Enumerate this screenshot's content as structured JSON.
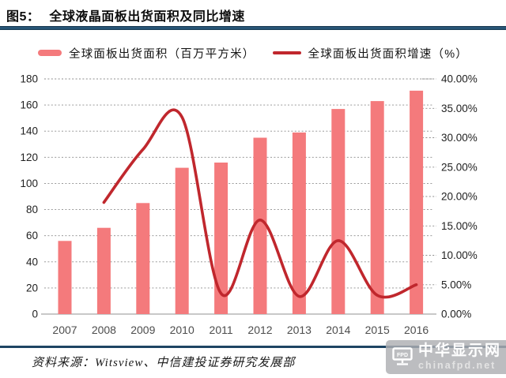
{
  "header": {
    "figure_label": "图5：",
    "title": "全球液晶面板出货面积及同比增速"
  },
  "chart_data": {
    "type": "bar+line",
    "categories": [
      "2007",
      "2008",
      "2009",
      "2010",
      "2011",
      "2012",
      "2013",
      "2014",
      "2015",
      "2016"
    ],
    "series": [
      {
        "name": "全球面板出货面积（百万平方米）",
        "type": "bar",
        "axis": "left",
        "color": "#f47a7c",
        "values": [
          56,
          66,
          85,
          112,
          116,
          135,
          139,
          157,
          163,
          171
        ]
      },
      {
        "name": "全球面板出货面积增速（%）",
        "type": "line",
        "axis": "right",
        "color": "#c0272d",
        "values": [
          null,
          19,
          28,
          33.5,
          3.5,
          16,
          3,
          12.5,
          3.2,
          5
        ]
      }
    ],
    "left_axis": {
      "min": 0,
      "max": 180,
      "step": 20,
      "labels": [
        "0",
        "20",
        "40",
        "60",
        "80",
        "100",
        "120",
        "140",
        "160",
        "180"
      ]
    },
    "right_axis": {
      "min": 0,
      "max": 40,
      "step": 5,
      "labels": [
        "0.00%",
        "5.00%",
        "10.00%",
        "15.00%",
        "20.00%",
        "25.00%",
        "30.00%",
        "35.00%",
        "40.00%"
      ]
    },
    "grid": "horizontal-dashed",
    "legend_position": "top"
  },
  "footer": {
    "source": "资料来源：Witsview、中信建投证券研究发展部"
  },
  "watermark": {
    "logo_text": "FPD",
    "name": "中华显示网",
    "domain": "chinafpd.net"
  },
  "colors": {
    "bar": "#f47a7c",
    "line": "#c0272d",
    "rule": "#1e4563",
    "grid": "#8c8c8c",
    "axis": "#a6a6a6"
  }
}
